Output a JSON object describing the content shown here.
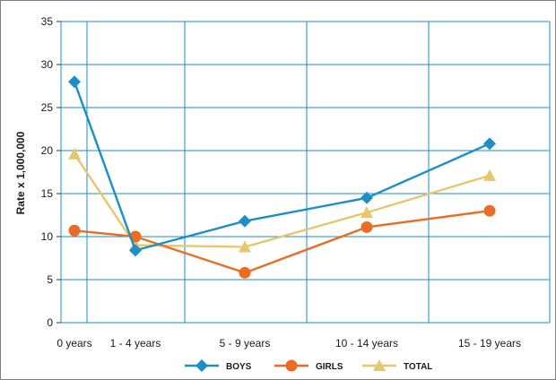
{
  "chart_data": {
    "type": "line",
    "categories": [
      "0 years",
      "1 - 4 years",
      "5 - 9 years",
      "10 - 14 years",
      "15 - 19 years"
    ],
    "series": [
      {
        "name": "BOYS",
        "values": [
          28.0,
          8.4,
          11.8,
          14.5,
          20.8
        ],
        "color": "#1b8fc6",
        "marker": "diamond"
      },
      {
        "name": "GIRLS",
        "values": [
          10.7,
          10.0,
          5.8,
          11.1,
          13.0
        ],
        "color": "#ec6c24",
        "marker": "circle"
      },
      {
        "name": "TOTAL",
        "values": [
          19.6,
          9.0,
          8.8,
          12.8,
          17.1
        ],
        "color": "#e8c66c",
        "marker": "triangle"
      }
    ],
    "ylabel": "Rate x 1,000,000",
    "xlabel": "",
    "ylim": [
      0,
      35
    ],
    "yticks": [
      0,
      5,
      10,
      15,
      20,
      25,
      30,
      35
    ],
    "grid": true,
    "grid_color": "#1b8fc6",
    "legend_position": "bottom"
  }
}
